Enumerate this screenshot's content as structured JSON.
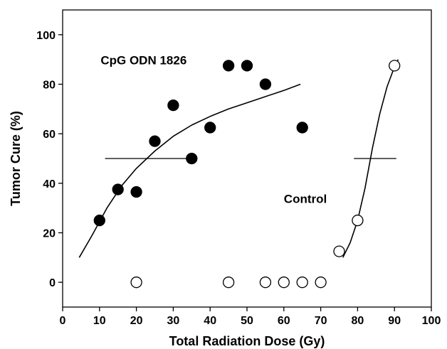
{
  "chart_data": {
    "type": "scatter",
    "title": "",
    "xlabel": "Total Radiation Dose (Gy)",
    "ylabel": "Tumor Cure (%)",
    "xlim": [
      0,
      100
    ],
    "ylim": [
      -10,
      110
    ],
    "x_ticks": [
      0,
      10,
      20,
      30,
      40,
      50,
      60,
      70,
      80,
      90,
      100
    ],
    "y_ticks": [
      0,
      20,
      40,
      60,
      80,
      100
    ],
    "grid": false,
    "legend": "none",
    "annotations": [
      {
        "text": "CpG ODN 1826",
        "x": 10.3,
        "y": 88
      },
      {
        "text": "Control",
        "x": 60,
        "y": 32
      }
    ],
    "series": [
      {
        "marker": "filled-circle",
        "color": "#000000",
        "points": [
          {
            "x": 10,
            "y": 25
          },
          {
            "x": 15,
            "y": 37.5
          },
          {
            "x": 20,
            "y": 36.5
          },
          {
            "x": 25,
            "y": 57
          },
          {
            "x": 30,
            "y": 71.5
          },
          {
            "x": 35,
            "y": 50
          },
          {
            "x": 40,
            "y": 62.5
          },
          {
            "x": 45,
            "y": 87.5
          },
          {
            "x": 50,
            "y": 87.5
          },
          {
            "x": 55,
            "y": 80
          },
          {
            "x": 65,
            "y": 62.5
          }
        ],
        "fit_curve": [
          {
            "x": 4.5,
            "y": 10
          },
          {
            "x": 8,
            "y": 19
          },
          {
            "x": 12,
            "y": 30
          },
          {
            "x": 16,
            "y": 39
          },
          {
            "x": 20,
            "y": 46
          },
          {
            "x": 25,
            "y": 53
          },
          {
            "x": 30,
            "y": 59
          },
          {
            "x": 35,
            "y": 63.5
          },
          {
            "x": 40,
            "y": 67
          },
          {
            "x": 45,
            "y": 70
          },
          {
            "x": 50,
            "y": 72.5
          },
          {
            "x": 55,
            "y": 75
          },
          {
            "x": 60,
            "y": 77.5
          },
          {
            "x": 64.5,
            "y": 80
          }
        ],
        "td50_line": {
          "x1": 11.5,
          "x2": 33.5,
          "y": 50
        }
      },
      {
        "marker": "open-circle",
        "color": "#000000",
        "points": [
          {
            "x": 75,
            "y": 12.5
          },
          {
            "x": 80,
            "y": 25
          },
          {
            "x": 90,
            "y": 87.5
          }
        ],
        "fit_curve": [
          {
            "x": 76,
            "y": 10
          },
          {
            "x": 78,
            "y": 16
          },
          {
            "x": 80,
            "y": 25
          },
          {
            "x": 82,
            "y": 38
          },
          {
            "x": 84,
            "y": 54
          },
          {
            "x": 86,
            "y": 68
          },
          {
            "x": 88,
            "y": 79
          },
          {
            "x": 90,
            "y": 87
          },
          {
            "x": 91,
            "y": 90
          }
        ],
        "td50_line": {
          "x1": 79,
          "x2": 90.5,
          "y": 50
        }
      },
      {
        "marker": "open-circle",
        "color": "#000000",
        "points": [
          {
            "x": 20,
            "y": 0
          },
          {
            "x": 45,
            "y": 0
          },
          {
            "x": 55,
            "y": 0
          },
          {
            "x": 60,
            "y": 0
          },
          {
            "x": 65,
            "y": 0
          },
          {
            "x": 70,
            "y": 0
          }
        ]
      }
    ]
  }
}
